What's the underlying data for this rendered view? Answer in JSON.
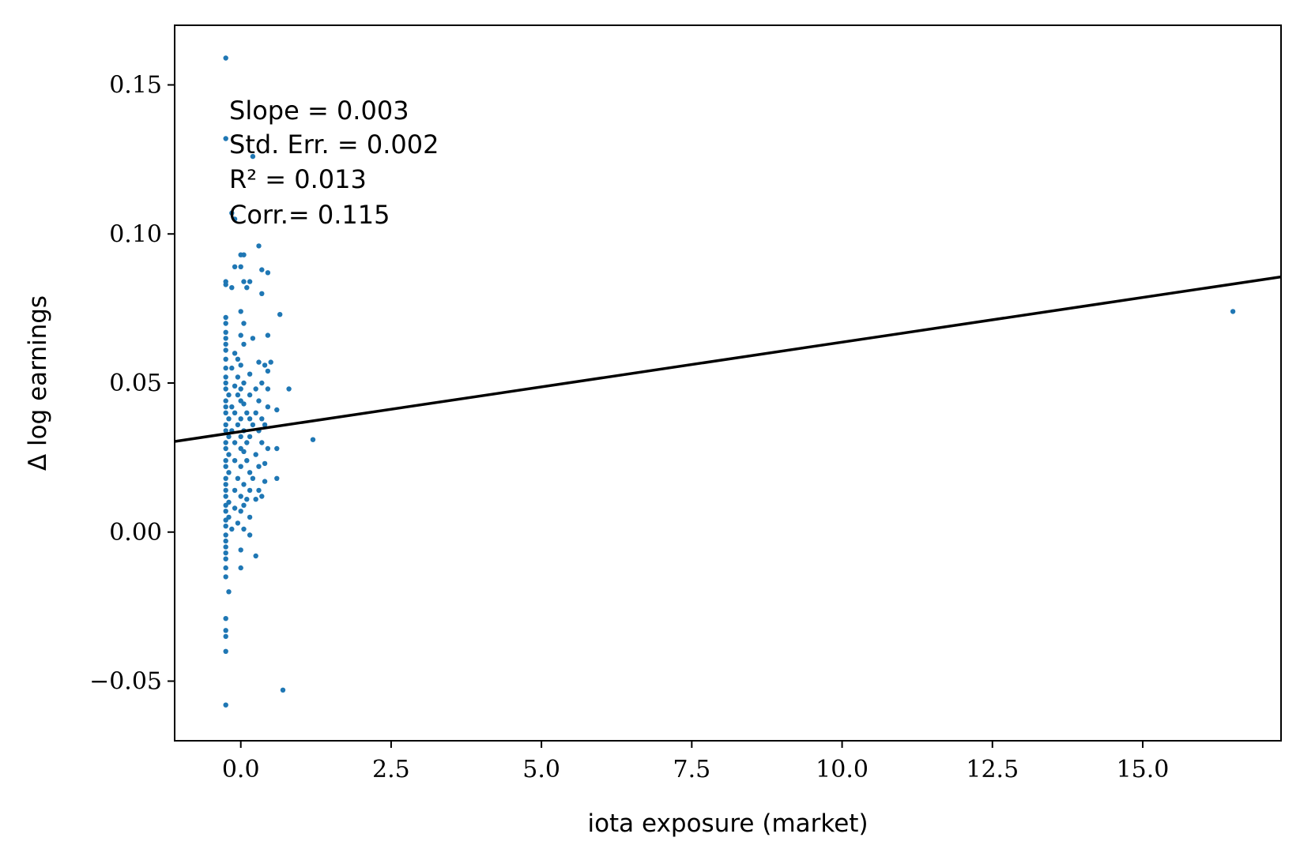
{
  "chart_data": {
    "type": "scatter",
    "xlabel": "iota exposure (market)",
    "ylabel": "Δ log earnings",
    "xlim": [
      -1.1,
      17.3
    ],
    "ylim": [
      -0.07,
      0.17
    ],
    "xticks": [
      0.0,
      2.5,
      5.0,
      7.5,
      10.0,
      12.5,
      15.0
    ],
    "xtick_labels": [
      "0.0",
      "2.5",
      "5.0",
      "7.5",
      "10.0",
      "12.5",
      "15.0"
    ],
    "yticks": [
      -0.05,
      0.0,
      0.05,
      0.1,
      0.15
    ],
    "ytick_labels": [
      "−0.05",
      "0.00",
      "0.05",
      "0.10",
      "0.15"
    ],
    "grid": false,
    "marker_color": "#1f77b4",
    "fit_line": {
      "color": "#000000",
      "intercept": 0.0337,
      "slope": 0.003
    },
    "annotations": [
      "Slope = 0.003",
      "Std. Err. = 0.002",
      "R² = 0.013",
      "Corr.= 0.115"
    ],
    "points": [
      [
        -0.25,
        0.159
      ],
      [
        -0.25,
        0.132
      ],
      [
        0.2,
        0.126
      ],
      [
        -0.15,
        0.107
      ],
      [
        -0.1,
        0.105
      ],
      [
        0.3,
        0.096
      ],
      [
        0.0,
        0.093
      ],
      [
        0.05,
        0.093
      ],
      [
        -0.1,
        0.089
      ],
      [
        0.0,
        0.089
      ],
      [
        0.35,
        0.088
      ],
      [
        0.45,
        0.087
      ],
      [
        -0.25,
        0.084
      ],
      [
        -0.25,
        0.083
      ],
      [
        0.15,
        0.084
      ],
      [
        0.05,
        0.084
      ],
      [
        -0.15,
        0.082
      ],
      [
        0.1,
        0.082
      ],
      [
        0.35,
        0.08
      ],
      [
        0.65,
        0.073
      ],
      [
        -0.25,
        0.072
      ],
      [
        -0.25,
        0.07
      ],
      [
        0.0,
        0.074
      ],
      [
        -0.25,
        0.067
      ],
      [
        0.05,
        0.07
      ],
      [
        -0.25,
        0.065
      ],
      [
        0.2,
        0.065
      ],
      [
        -0.25,
        0.063
      ],
      [
        0.0,
        0.066
      ],
      [
        0.45,
        0.066
      ],
      [
        -0.25,
        0.061
      ],
      [
        -0.1,
        0.06
      ],
      [
        0.05,
        0.063
      ],
      [
        -0.25,
        0.058
      ],
      [
        -0.05,
        0.058
      ],
      [
        0.3,
        0.057
      ],
      [
        0.5,
        0.057
      ],
      [
        -0.25,
        0.055
      ],
      [
        -0.15,
        0.055
      ],
      [
        0.0,
        0.056
      ],
      [
        0.4,
        0.056
      ],
      [
        0.45,
        0.054
      ],
      [
        -0.25,
        0.052
      ],
      [
        -0.05,
        0.052
      ],
      [
        0.15,
        0.053
      ],
      [
        -0.25,
        0.05
      ],
      [
        -0.1,
        0.049
      ],
      [
        0.05,
        0.05
      ],
      [
        0.35,
        0.05
      ],
      [
        0.8,
        0.048
      ],
      [
        -0.25,
        0.048
      ],
      [
        0.0,
        0.048
      ],
      [
        0.25,
        0.048
      ],
      [
        0.45,
        0.048
      ],
      [
        -0.2,
        0.046
      ],
      [
        -0.05,
        0.046
      ],
      [
        0.15,
        0.046
      ],
      [
        -0.25,
        0.044
      ],
      [
        0.0,
        0.044
      ],
      [
        0.3,
        0.044
      ],
      [
        -0.25,
        0.042
      ],
      [
        -0.15,
        0.042
      ],
      [
        0.05,
        0.043
      ],
      [
        0.45,
        0.042
      ],
      [
        0.6,
        0.041
      ],
      [
        -0.25,
        0.04
      ],
      [
        -0.1,
        0.04
      ],
      [
        0.1,
        0.04
      ],
      [
        0.25,
        0.04
      ],
      [
        -0.2,
        0.038
      ],
      [
        0.0,
        0.038
      ],
      [
        0.15,
        0.038
      ],
      [
        0.35,
        0.038
      ],
      [
        -0.25,
        0.036
      ],
      [
        -0.05,
        0.036
      ],
      [
        0.2,
        0.036
      ],
      [
        0.4,
        0.036
      ],
      [
        -0.25,
        0.034
      ],
      [
        -0.15,
        0.034
      ],
      [
        0.05,
        0.034
      ],
      [
        0.3,
        0.034
      ],
      [
        -0.2,
        0.032
      ],
      [
        0.0,
        0.032
      ],
      [
        0.15,
        0.032
      ],
      [
        1.2,
        0.031
      ],
      [
        -0.25,
        0.03
      ],
      [
        -0.1,
        0.03
      ],
      [
        0.1,
        0.03
      ],
      [
        0.35,
        0.03
      ],
      [
        -0.25,
        0.028
      ],
      [
        0.0,
        0.028
      ],
      [
        0.45,
        0.028
      ],
      [
        0.6,
        0.028
      ],
      [
        -0.2,
        0.026
      ],
      [
        0.05,
        0.027
      ],
      [
        0.25,
        0.026
      ],
      [
        -0.25,
        0.024
      ],
      [
        -0.1,
        0.024
      ],
      [
        0.1,
        0.024
      ],
      [
        0.4,
        0.023
      ],
      [
        -0.25,
        0.022
      ],
      [
        0.0,
        0.022
      ],
      [
        0.3,
        0.022
      ],
      [
        -0.2,
        0.02
      ],
      [
        0.15,
        0.02
      ],
      [
        -0.25,
        0.018
      ],
      [
        -0.05,
        0.018
      ],
      [
        0.2,
        0.018
      ],
      [
        0.6,
        0.018
      ],
      [
        -0.25,
        0.016
      ],
      [
        0.05,
        0.016
      ],
      [
        0.4,
        0.017
      ],
      [
        -0.25,
        0.014
      ],
      [
        -0.1,
        0.014
      ],
      [
        0.15,
        0.014
      ],
      [
        0.3,
        0.014
      ],
      [
        -0.25,
        0.012
      ],
      [
        0.0,
        0.012
      ],
      [
        0.35,
        0.012
      ],
      [
        -0.2,
        0.01
      ],
      [
        0.1,
        0.011
      ],
      [
        0.25,
        0.011
      ],
      [
        -0.25,
        0.009
      ],
      [
        -0.1,
        0.008
      ],
      [
        0.05,
        0.009
      ],
      [
        -0.25,
        0.007
      ],
      [
        0.0,
        0.007
      ],
      [
        -0.2,
        0.005
      ],
      [
        0.15,
        0.005
      ],
      [
        -0.25,
        0.004
      ],
      [
        -0.05,
        0.003
      ],
      [
        -0.25,
        0.002
      ],
      [
        -0.15,
        0.001
      ],
      [
        0.05,
        0.001
      ],
      [
        -0.25,
        -0.001
      ],
      [
        0.15,
        -0.001
      ],
      [
        -0.25,
        -0.003
      ],
      [
        -0.25,
        -0.005
      ],
      [
        0.0,
        -0.006
      ],
      [
        -0.25,
        -0.007
      ],
      [
        0.25,
        -0.008
      ],
      [
        -0.25,
        -0.009
      ],
      [
        -0.25,
        -0.012
      ],
      [
        0.0,
        -0.012
      ],
      [
        -0.25,
        -0.015
      ],
      [
        -0.2,
        -0.02
      ],
      [
        -0.25,
        -0.029
      ],
      [
        -0.25,
        -0.033
      ],
      [
        -0.25,
        -0.035
      ],
      [
        -0.25,
        -0.04
      ],
      [
        0.7,
        -0.053
      ],
      [
        -0.25,
        -0.058
      ],
      [
        16.5,
        0.074
      ]
    ]
  }
}
